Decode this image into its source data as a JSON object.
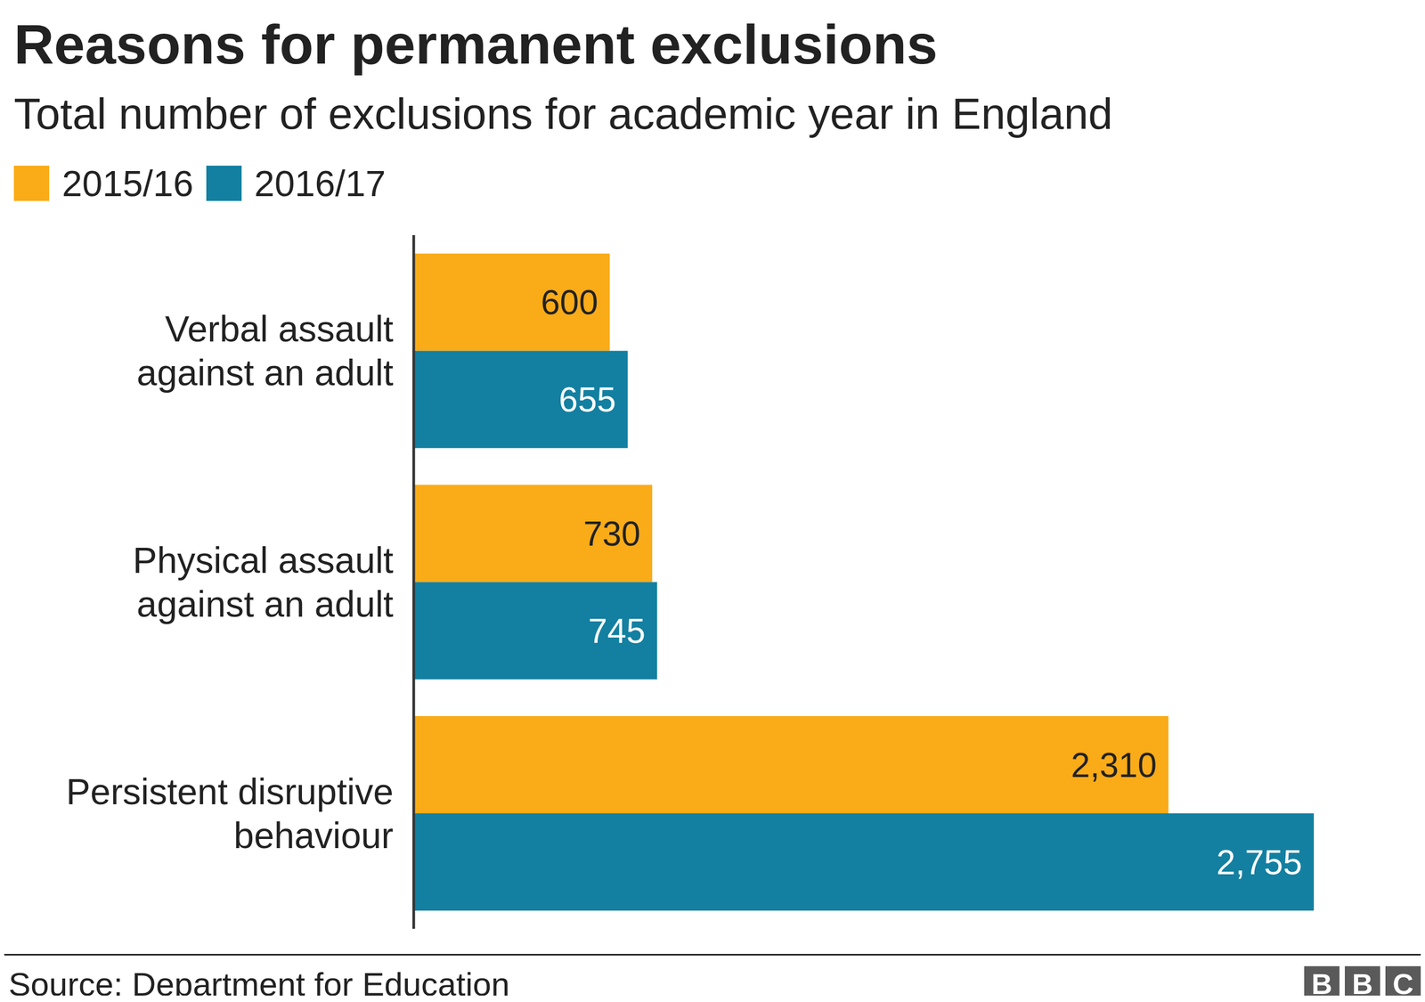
{
  "chart_data": {
    "type": "bar",
    "title": "Reasons for permanent exclusions",
    "subtitle": "Total number of exclusions for academic year in England",
    "source": "Source: Department for Education",
    "logo": "BBC",
    "orientation": "horizontal",
    "categories": [
      "Verbal assault against an adult",
      "Physical assault against an adult",
      "Persistent disruptive behaviour"
    ],
    "series": [
      {
        "name": "2015/16",
        "color": "#FAAB18",
        "values": [
          600,
          730,
          2310
        ],
        "value_labels": [
          "600",
          "730",
          "2,310"
        ]
      },
      {
        "name": "2016/17",
        "color": "#1380A1",
        "values": [
          655,
          745,
          2755
        ],
        "value_labels": [
          "655",
          "745",
          "2,755"
        ]
      }
    ],
    "xlim": [
      0,
      2755
    ],
    "data_labels": true,
    "tick_labels": false,
    "grid": false,
    "legend": "top-left"
  }
}
